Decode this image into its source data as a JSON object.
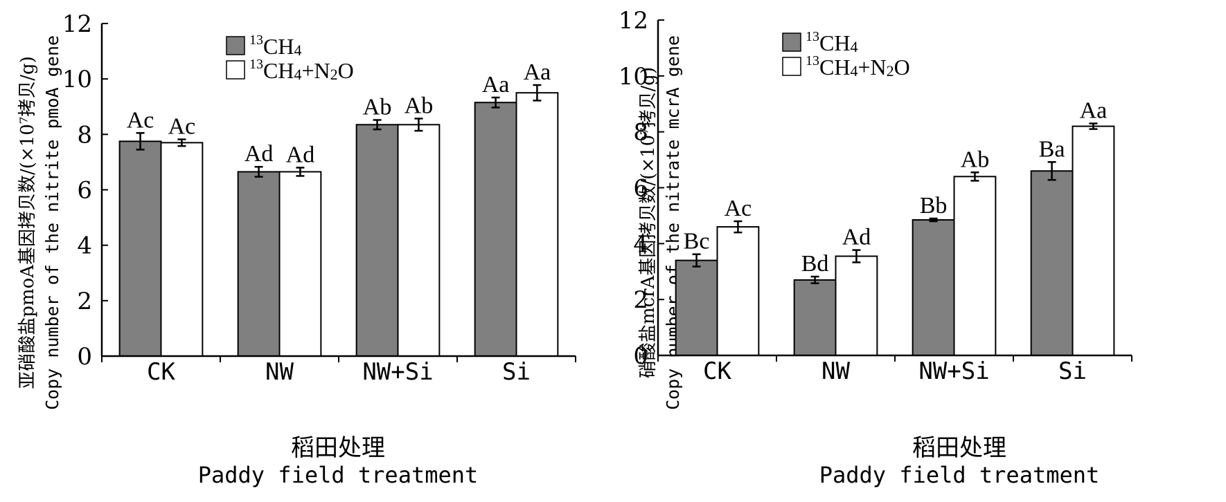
{
  "chart_data": [
    {
      "type": "bar",
      "title": "",
      "xlabel_cn": "稻田处理",
      "xlabel_en": "Paddy field treatment",
      "ylabel_cn": "亚硝酸盐pmoA基因拷贝数/(×10⁷拷贝/g)",
      "ylabel_en": "Copy number of the nitrite pmoA gene",
      "ylim": [
        0,
        12
      ],
      "yticks": [
        0,
        2,
        4,
        6,
        8,
        10,
        12
      ],
      "categories": [
        "CK",
        "NW",
        "NW+Si",
        "Si"
      ],
      "legend_position": "top-center",
      "series": [
        {
          "name": "13CH4",
          "name_sup": "13",
          "name_main": "CH",
          "name_sub": "4",
          "color": "#808080",
          "values": [
            7.75,
            6.65,
            8.35,
            9.15
          ],
          "errors": [
            0.3,
            0.18,
            0.17,
            0.18
          ],
          "labels": [
            "Ac",
            "Ad",
            "Ab",
            "Aa"
          ]
        },
        {
          "name": "13CH4+N2O",
          "name_sup": "13",
          "name_main": "CH",
          "name_sub": "4",
          "name_tail": "+N",
          "name_tail_sub": "2",
          "name_tail_end": "O",
          "color": "#ffffff",
          "values": [
            7.7,
            6.65,
            8.35,
            9.5
          ],
          "errors": [
            0.12,
            0.15,
            0.22,
            0.28
          ],
          "labels": [
            "Ac",
            "Ad",
            "Ab",
            "Aa"
          ]
        }
      ]
    },
    {
      "type": "bar",
      "title": "",
      "xlabel_cn": "稻田处理",
      "xlabel_en": "Paddy field treatment",
      "ylabel_cn": "硝酸盐mcrA基因拷贝数/(×10⁷拷贝/g)",
      "ylabel_en": "Copy number of the nitrate mcrA gene",
      "ylim": [
        0,
        12
      ],
      "yticks": [
        0,
        2,
        4,
        6,
        8,
        10,
        12
      ],
      "categories": [
        "CK",
        "NW",
        "NW+Si",
        "Si"
      ],
      "legend_position": "top-left",
      "series": [
        {
          "name": "13CH4",
          "name_sup": "13",
          "name_main": "CH",
          "name_sub": "4",
          "color": "#808080",
          "values": [
            3.4,
            2.7,
            4.85,
            6.6
          ],
          "errors": [
            0.22,
            0.12,
            0.05,
            0.32
          ],
          "labels": [
            "Bc",
            "Bd",
            "Bb",
            "Ba"
          ]
        },
        {
          "name": "13CH4+N2O",
          "name_sup": "13",
          "name_main": "CH",
          "name_sub": "4",
          "name_tail": "+N",
          "name_tail_sub": "2",
          "name_tail_end": "O",
          "color": "#ffffff",
          "values": [
            4.6,
            3.55,
            6.4,
            8.2
          ],
          "errors": [
            0.2,
            0.22,
            0.15,
            0.1
          ],
          "labels": [
            "Ac",
            "Ad",
            "Ab",
            "Aa"
          ]
        }
      ]
    }
  ]
}
